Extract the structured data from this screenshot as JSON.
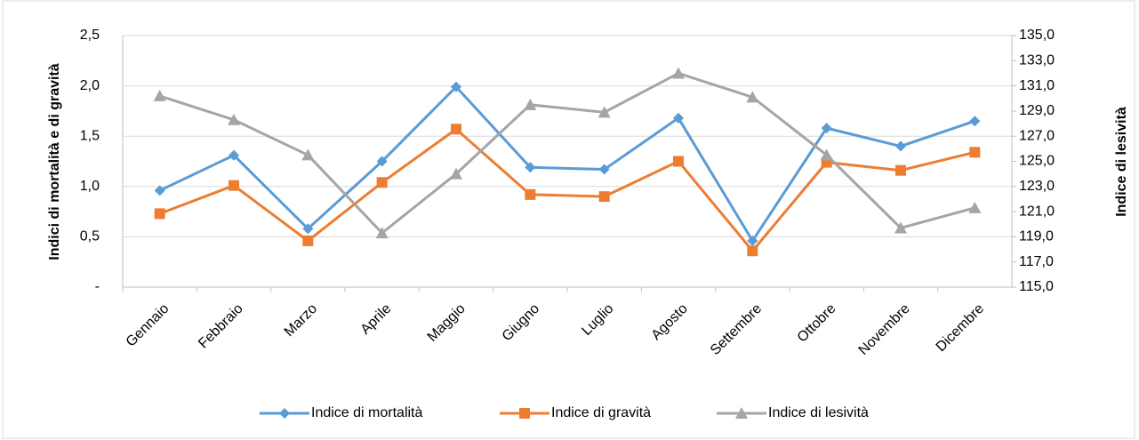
{
  "chart_data": {
    "type": "line",
    "y_label": "Indici di mortalità e di gravità",
    "y2_label": "Indice di lesività",
    "categories": [
      "Gennaio",
      "Febbraio",
      "Marzo",
      "Aprile",
      "Maggio",
      "Giugno",
      "Luglio",
      "Agosto",
      "Settembre",
      "Ottobre",
      "Novembre",
      "Dicembre"
    ],
    "series": [
      {
        "name": "Indice di mortalità",
        "color": "#5b9bd5",
        "marker": "diamond",
        "values": [
          0.96,
          1.31,
          0.58,
          1.25,
          1.99,
          1.19,
          1.17,
          1.68,
          0.46,
          1.58,
          1.4,
          1.65
        ]
      },
      {
        "name": "Indice di gravità",
        "color": "#ed7d31",
        "marker": "square",
        "values": [
          0.73,
          1.01,
          0.46,
          1.04,
          1.57,
          0.92,
          0.9,
          1.25,
          0.36,
          1.24,
          1.16,
          1.34
        ]
      },
      {
        "name": "Indice di lesività",
        "color": "#a5a5a5",
        "marker": "triangle",
        "axis": "y2",
        "values": [
          130.2,
          128.3,
          125.5,
          119.3,
          124.0,
          129.5,
          128.9,
          132.0,
          130.1,
          125.5,
          119.7,
          121.3
        ]
      }
    ],
    "ylim": [
      0,
      2.5
    ],
    "yticks": [
      {
        "value": 0,
        "label": "-"
      },
      {
        "value": 0.5,
        "label": "0,5"
      },
      {
        "value": 1,
        "label": "1,0"
      },
      {
        "value": 1.5,
        "label": "1,5"
      },
      {
        "value": 2,
        "label": "2,0"
      },
      {
        "value": 2.5,
        "label": "2,5"
      }
    ],
    "y2lim": [
      115,
      135
    ],
    "y2ticks": [
      {
        "value": 115,
        "label": "115,0"
      },
      {
        "value": 117,
        "label": "117,0"
      },
      {
        "value": 119,
        "label": "119,0"
      },
      {
        "value": 121,
        "label": "121,0"
      },
      {
        "value": 123,
        "label": "123,0"
      },
      {
        "value": 125,
        "label": "125,0"
      },
      {
        "value": 127,
        "label": "127,0"
      },
      {
        "value": 129,
        "label": "129,0"
      },
      {
        "value": 131,
        "label": "131,0"
      },
      {
        "value": 133,
        "label": "133,0"
      },
      {
        "value": 135,
        "label": "135,0"
      }
    ],
    "grid": true,
    "legend": "bottom"
  }
}
